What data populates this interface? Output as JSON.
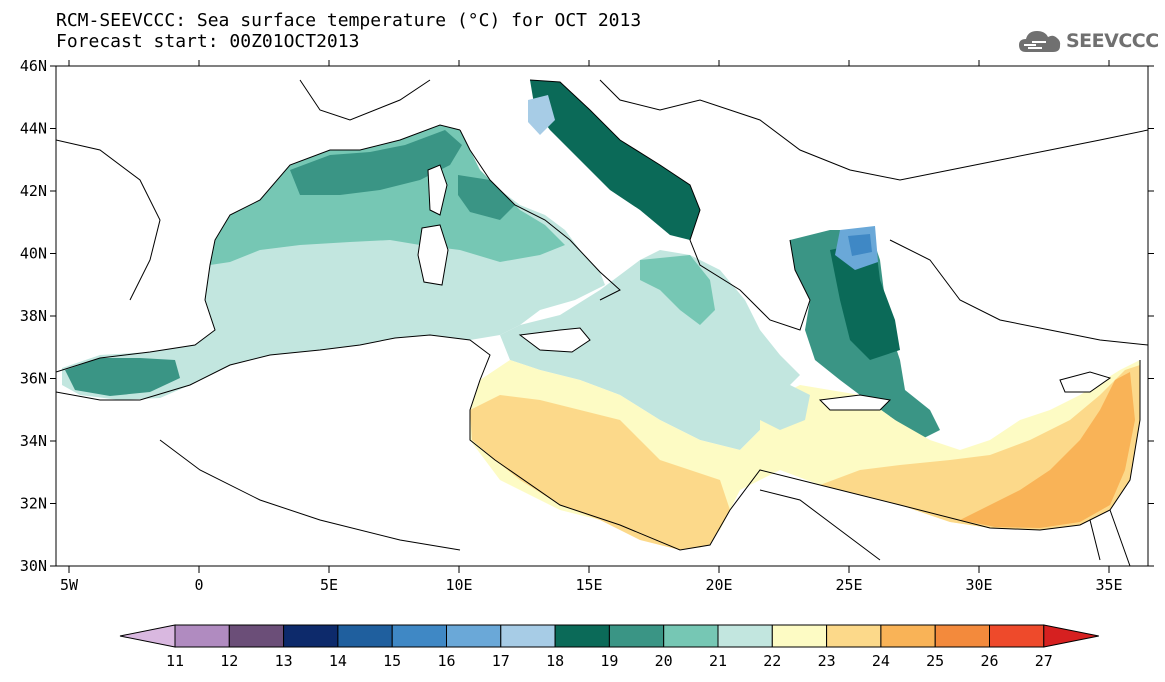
{
  "title": {
    "line1": "RCM-SEEVCCC: Sea surface temperature (°C) for OCT 2013",
    "line2": "Forecast start: 00Z01OCT2013"
  },
  "logo": {
    "text": "SEEVCCC",
    "icon": "cloud-logo-icon"
  },
  "map": {
    "lon_range": [
      -5.5,
      36.5
    ],
    "lat_range": [
      30,
      46
    ],
    "lon_ticks": [
      "5W",
      "0",
      "5E",
      "10E",
      "15E",
      "20E",
      "25E",
      "30E",
      "35E"
    ],
    "lat_ticks": [
      "30N",
      "32N",
      "34N",
      "36N",
      "38N",
      "40N",
      "42N",
      "44N",
      "46N"
    ],
    "variable": "Sea surface temperature",
    "units": "°C",
    "month": "OCT 2013"
  },
  "colorbar": {
    "labels": [
      "11",
      "12",
      "13",
      "14",
      "15",
      "16",
      "17",
      "18",
      "19",
      "20",
      "21",
      "22",
      "23",
      "24",
      "25",
      "26",
      "27"
    ],
    "colors": [
      "#d9b8e0",
      "#b08bc0",
      "#6b4e78",
      "#0d2a6b",
      "#1f5f9e",
      "#3f88c5",
      "#6aa8d8",
      "#a7cce6",
      "#0b6a58",
      "#3a9585",
      "#76c7b4",
      "#c2e6df",
      "#fdfbc4",
      "#fcd98a",
      "#f9b357",
      "#f38a3c",
      "#ee4a2b",
      "#d62020"
    ]
  },
  "colors": {
    "land": "#ffffff",
    "coastline": "#000000"
  }
}
